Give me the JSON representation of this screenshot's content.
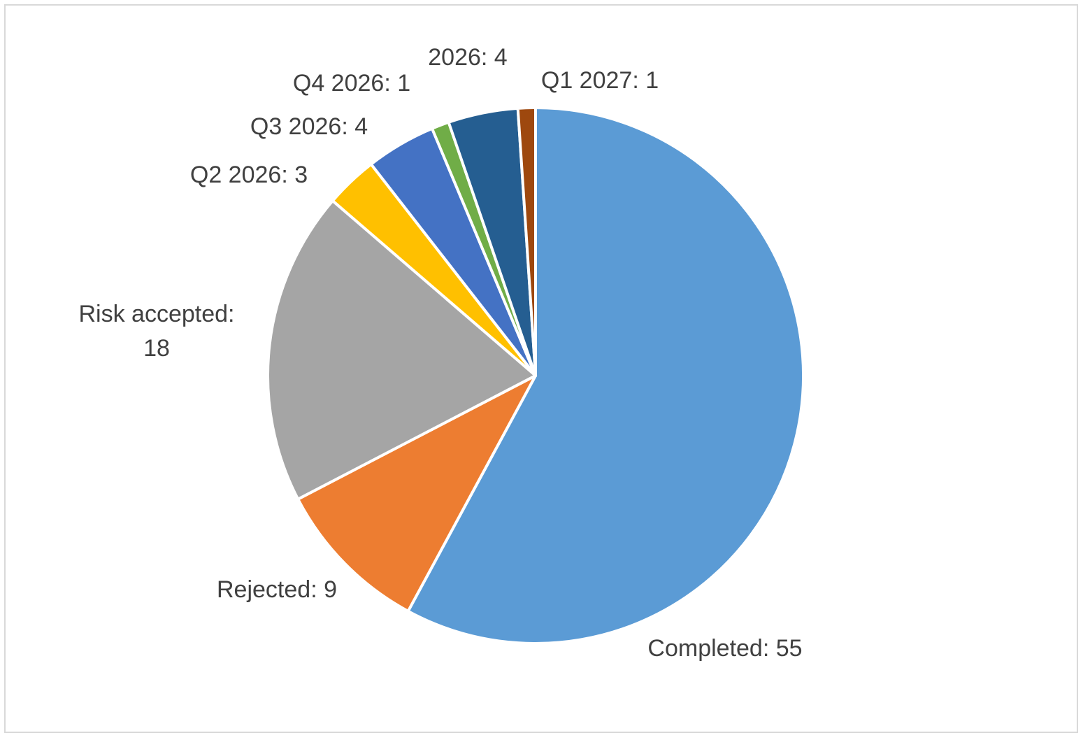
{
  "chart_data": {
    "type": "pie",
    "title": "",
    "start_angle_deg": 0,
    "direction": "clockwise",
    "slice_border_color": "#ffffff",
    "label_color": "#404040",
    "slices": [
      {
        "name": "Completed",
        "value": 55,
        "color": "#5b9bd5",
        "label_lines": [
          "Completed: 55"
        ]
      },
      {
        "name": "Rejected",
        "value": 9,
        "color": "#ed7d31",
        "label_lines": [
          "Rejected: 9"
        ]
      },
      {
        "name": "Risk accepted",
        "value": 18,
        "color": "#a5a5a5",
        "label_lines": [
          "Risk accepted:",
          "18"
        ]
      },
      {
        "name": "Q2 2026",
        "value": 3,
        "color": "#ffc000",
        "label_lines": [
          "Q2 2026: 3"
        ]
      },
      {
        "name": "Q3 2026",
        "value": 4,
        "color": "#4472c4",
        "label_lines": [
          "Q3 2026: 4"
        ]
      },
      {
        "name": "Q4 2026",
        "value": 1,
        "color": "#70ad47",
        "label_lines": [
          "Q4 2026: 1"
        ]
      },
      {
        "name": "2026",
        "value": 4,
        "color": "#255e91",
        "label_lines": [
          "2026: 4"
        ]
      },
      {
        "name": "Q1 2027",
        "value": 1,
        "color": "#9e480e",
        "label_lines": [
          "Q1 2027: 1"
        ]
      }
    ]
  }
}
